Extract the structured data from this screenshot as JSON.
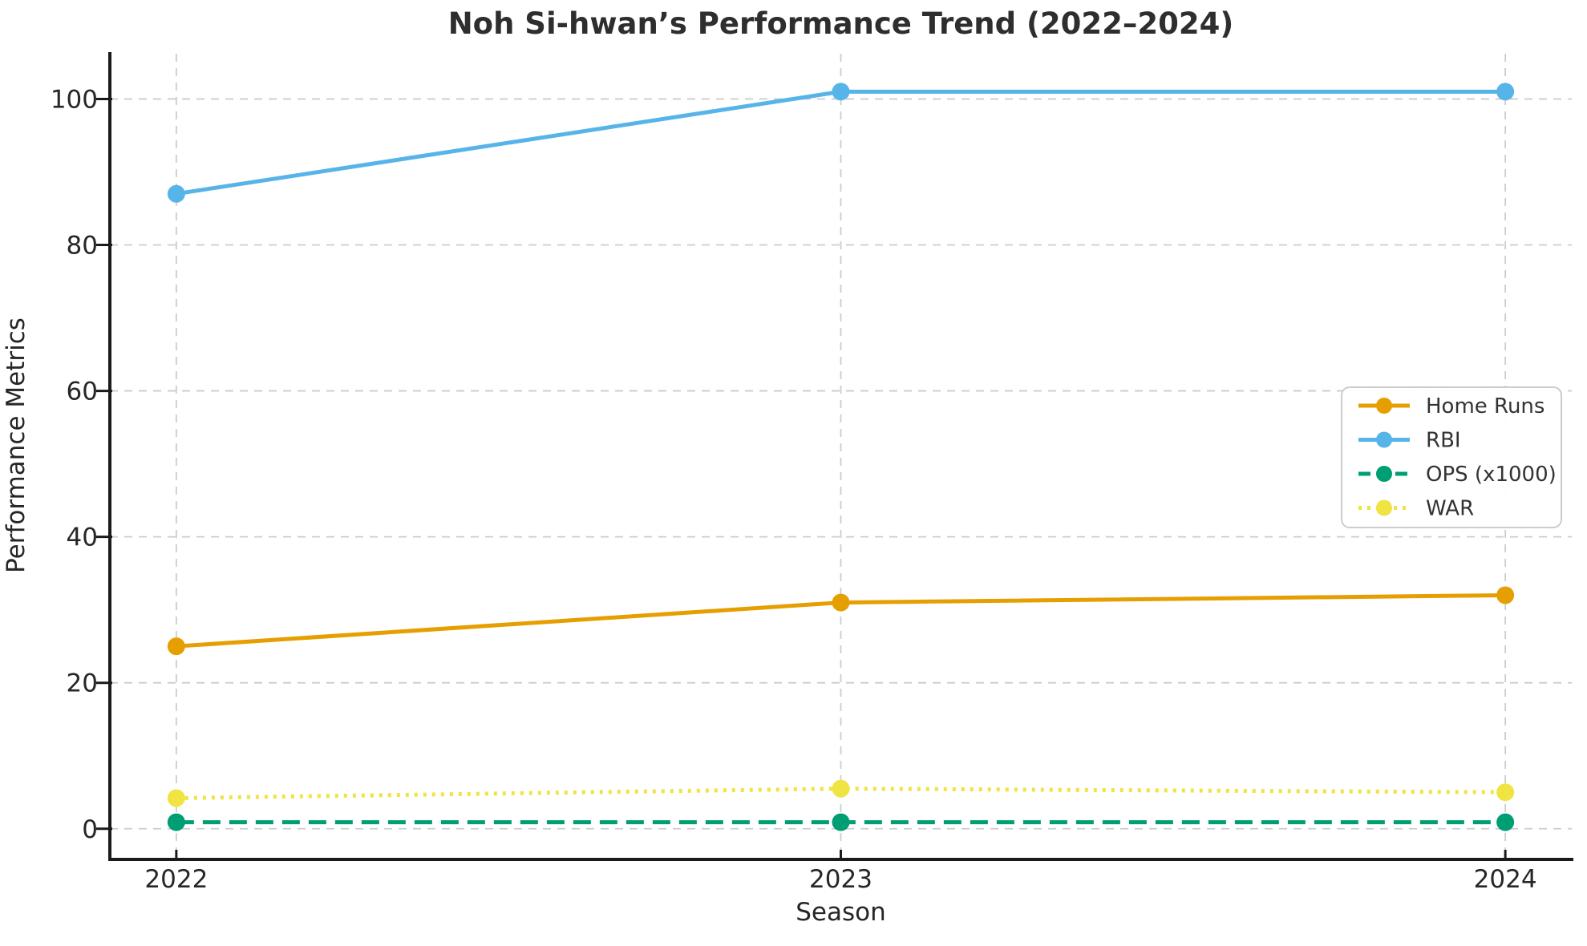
{
  "title": "Noh Si-hwan’s Performance Trend (2022–2024)",
  "chart_data": {
    "type": "line",
    "title": "Noh Si-hwan’s Performance Trend (2022–2024)",
    "xlabel": "Season",
    "ylabel": "Performance Metrics",
    "categories": [
      "2022",
      "2023",
      "2024"
    ],
    "x": [
      2022,
      2023,
      2024
    ],
    "series": [
      {
        "name": "Home Runs",
        "values": [
          25,
          31,
          32
        ],
        "color": "#E69F00",
        "line_style": "solid"
      },
      {
        "name": "RBI",
        "values": [
          87,
          101,
          101
        ],
        "color": "#56B4E9",
        "line_style": "solid"
      },
      {
        "name": "OPS (x1000)",
        "values": [
          0.9,
          0.9,
          0.9
        ],
        "color": "#009E73",
        "line_style": "dashed"
      },
      {
        "name": "WAR",
        "values": [
          4.2,
          5.5,
          5.0
        ],
        "color": "#F0E442",
        "line_style": "dotted"
      }
    ],
    "yticks": [
      0,
      20,
      40,
      60,
      80,
      100
    ],
    "ylim": [
      -4.2,
      106.2
    ],
    "xlim": [
      2021.9,
      2024.1
    ],
    "grid": true,
    "grid_style": "dashed",
    "legend_position": "center-right",
    "colors": {
      "axis": "#1a1a1a",
      "grid": "#cccccc",
      "text": "#262626",
      "title": "#2e2e2e",
      "legend_border": "#cccccc",
      "background": "#ffffff"
    }
  }
}
